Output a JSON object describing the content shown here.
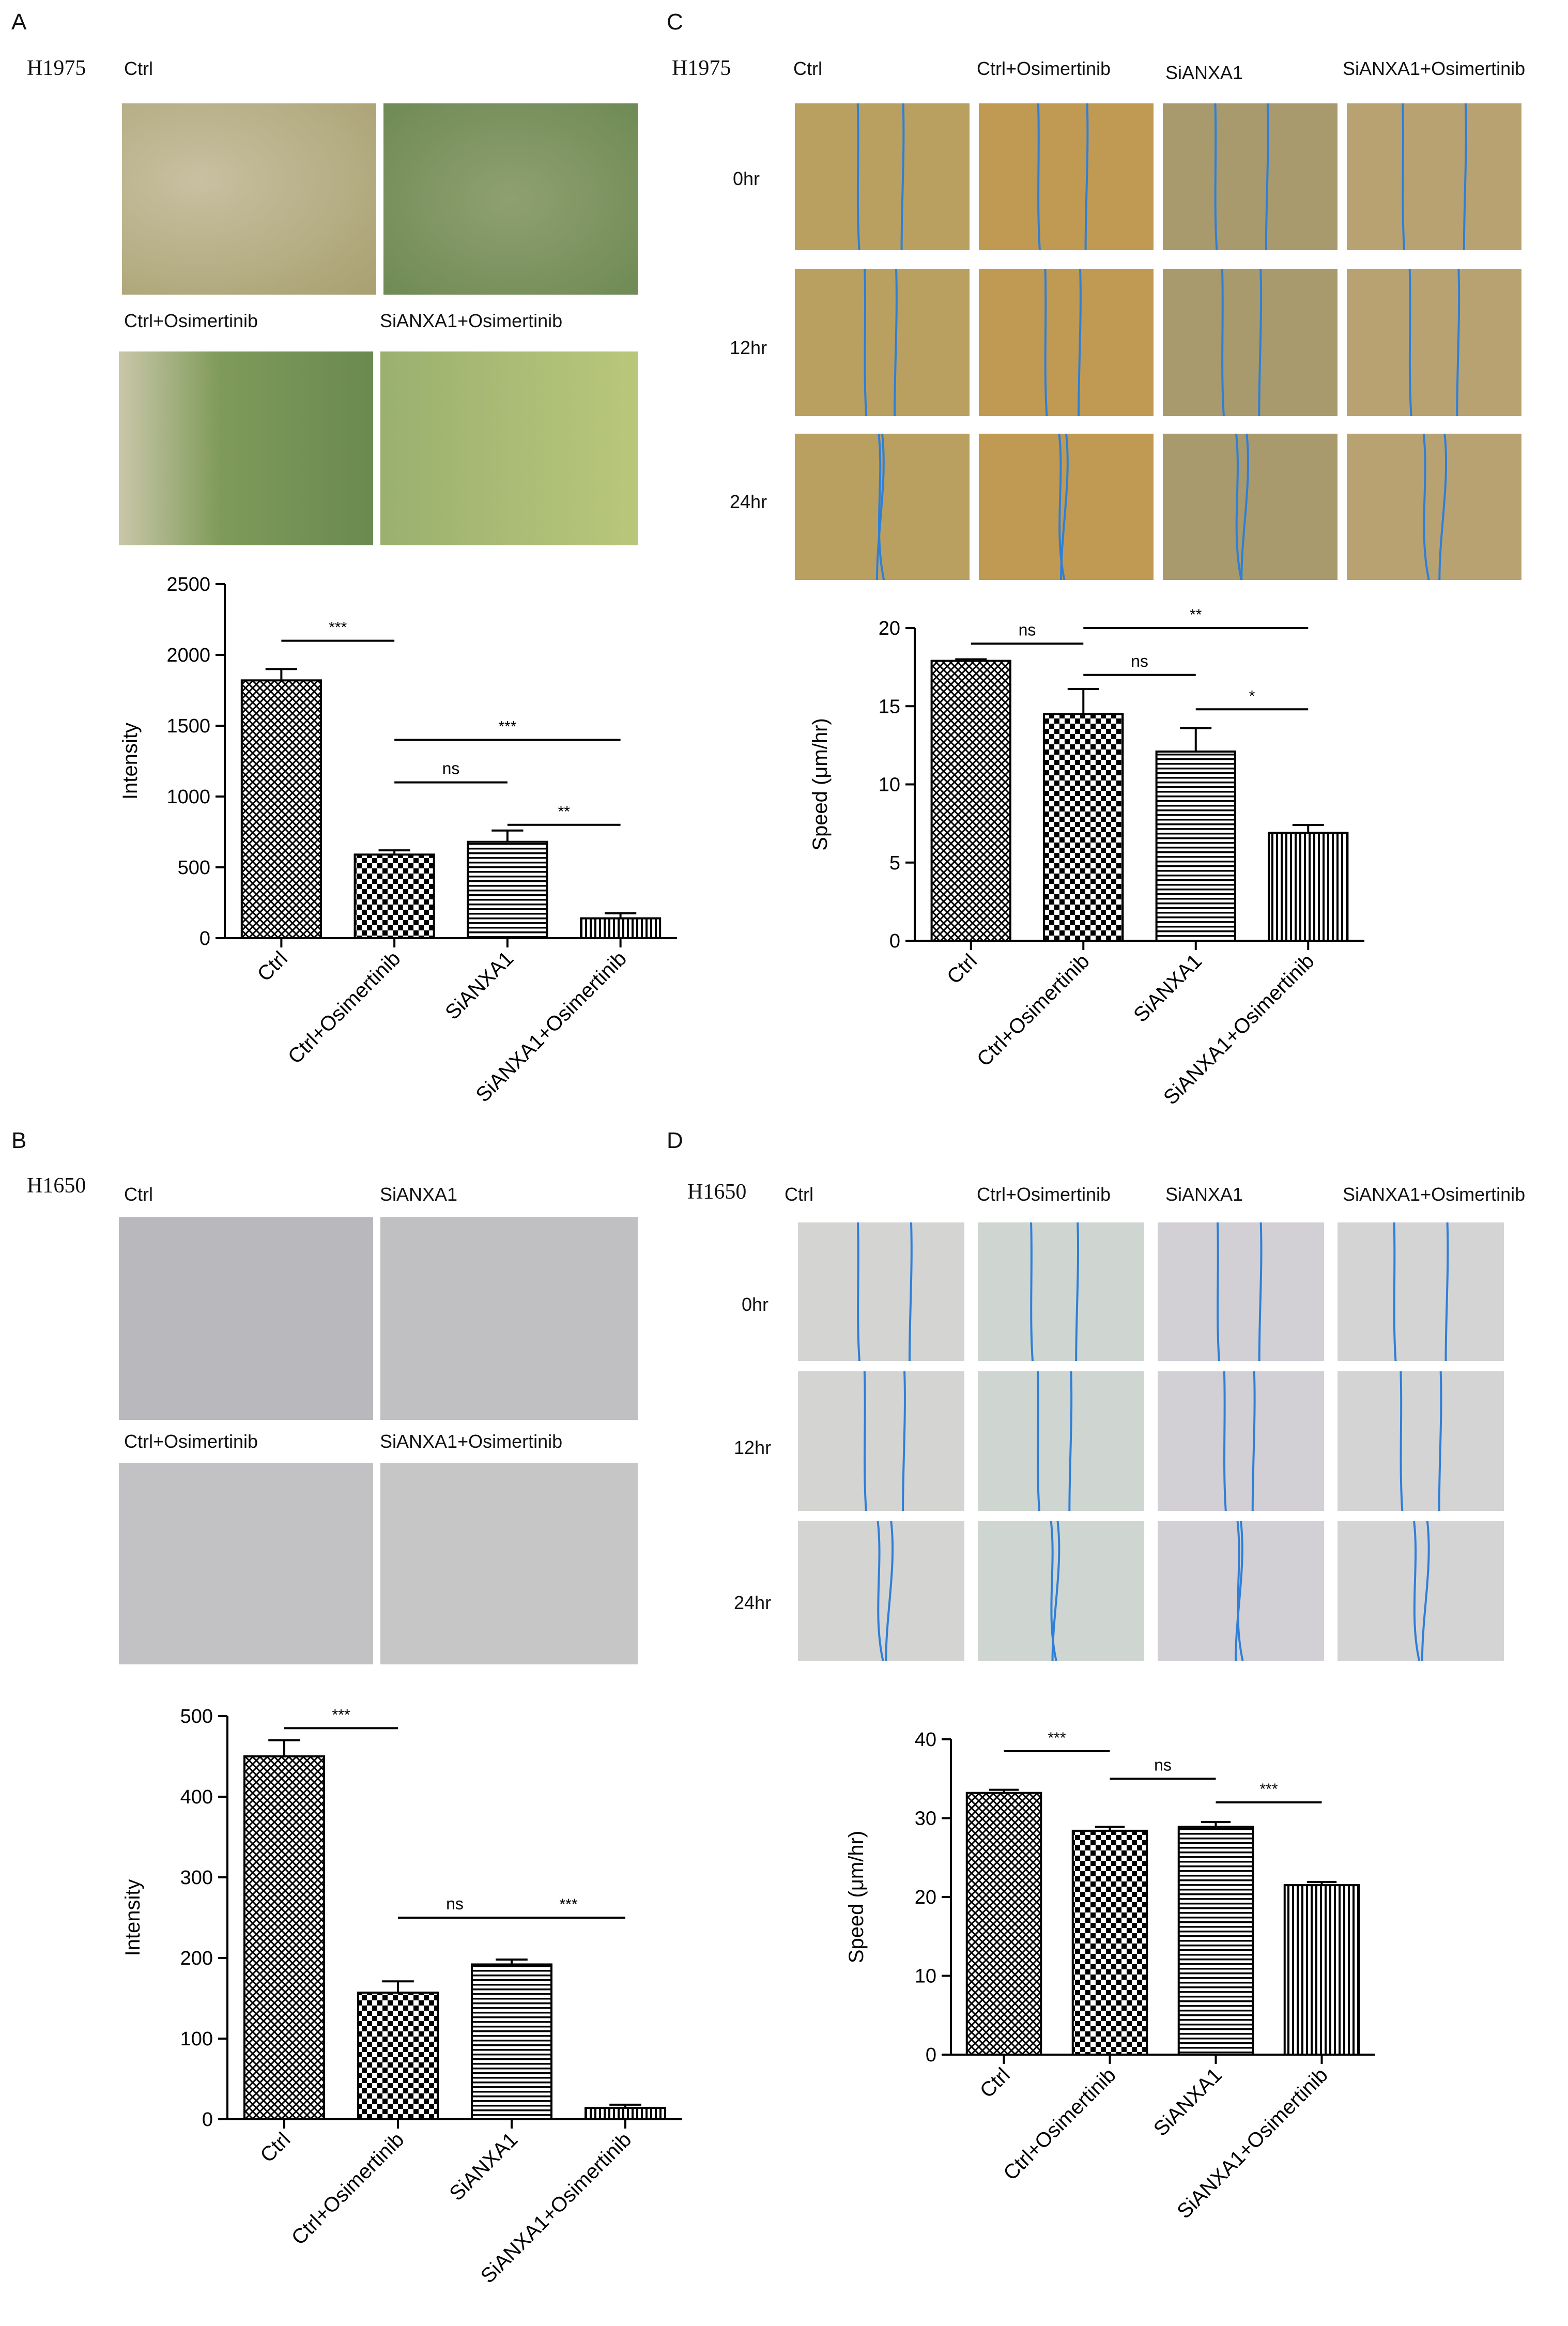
{
  "colors": {
    "ink": "#000000",
    "crystal_violet": "#6a3fb5",
    "wound_line": "#2f7fd8",
    "phase_bg_1975": "#b79a4a",
    "transwell_bg_1975": "#9aa86a",
    "phase_bg_1650": "#c9c9c9"
  },
  "panels": {
    "A": {
      "letter": "A",
      "cell_line": "H1975",
      "image_labels": [
        "Ctrl",
        "Ctrl+Osimertinib",
        "SiANXA1+Osimertinib"
      ]
    },
    "B": {
      "letter": "B",
      "cell_line": "H1650",
      "image_labels": [
        "Ctrl",
        "SiANXA1",
        "Ctrl+Osimertinib",
        "SiANXA1+Osimertinib"
      ]
    },
    "C": {
      "letter": "C",
      "cell_line": "H1975",
      "col_labels": [
        "Ctrl",
        "Ctrl+Osimertinib",
        "SiANXA1",
        "SiANXA1+Osimertinib"
      ],
      "row_labels": [
        "0hr",
        "12hr",
        "24hr"
      ]
    },
    "D": {
      "letter": "D",
      "cell_line": "H1650",
      "col_labels": [
        "Ctrl",
        "Ctrl+Osimertinib",
        "SiANXA1",
        "SiANXA1+Osimertinib"
      ],
      "row_labels": [
        "0hr",
        "12hr",
        "24hr"
      ]
    }
  },
  "chart_data": [
    {
      "id": "A",
      "type": "bar",
      "categories": [
        "Ctrl",
        "Ctrl+Osimertinib",
        "SiANXA1",
        "SiANXA1+Osimertinib"
      ],
      "values": [
        1820,
        590,
        680,
        140
      ],
      "errors": [
        80,
        30,
        80,
        35
      ],
      "patterns": [
        "checker-diag",
        "checker",
        "hlines",
        "vlines"
      ],
      "ylabel": "Intensity",
      "ylim": [
        0,
        2500
      ],
      "yticks": [
        0,
        500,
        1000,
        1500,
        2000,
        2500
      ],
      "significance": [
        {
          "label": "***",
          "from": 0,
          "to": 1,
          "y": 2100
        },
        {
          "label": "***",
          "from": 1,
          "to": 3,
          "y": 1400
        },
        {
          "label": "ns",
          "from": 1,
          "to": 2,
          "y": 1100
        },
        {
          "label": "**",
          "from": 2,
          "to": 3,
          "y": 800
        }
      ]
    },
    {
      "id": "B",
      "type": "bar",
      "categories": [
        "Ctrl",
        "Ctrl+Osimertinib",
        "SiANXA1",
        "SiANXA1+Osimertinib"
      ],
      "values": [
        450,
        157,
        192,
        14
      ],
      "errors": [
        20,
        14,
        6,
        4
      ],
      "patterns": [
        "checker-diag",
        "checker",
        "hlines",
        "vlines"
      ],
      "ylabel": "Intensity",
      "ylim": [
        0,
        500
      ],
      "yticks": [
        0,
        100,
        200,
        300,
        400,
        500
      ],
      "significance": [
        {
          "label": "***",
          "from": 0,
          "to": 1,
          "y": 485
        },
        {
          "label": "ns",
          "from": 1,
          "to": 2,
          "y": 250
        },
        {
          "label": "***",
          "from": 2,
          "to": 3,
          "y": 250
        }
      ]
    },
    {
      "id": "C",
      "type": "bar",
      "categories": [
        "Ctrl",
        "Ctrl+Osimertinib",
        "SiANXA1",
        "SiANXA1+Osimertinib"
      ],
      "values": [
        17.9,
        14.5,
        12.1,
        6.9
      ],
      "errors": [
        0.1,
        1.6,
        1.5,
        0.5
      ],
      "patterns": [
        "checker-diag",
        "checker",
        "hlines",
        "vlines"
      ],
      "ylabel": "Speed (μm/hr)",
      "ylim": [
        0,
        20
      ],
      "yticks": [
        0,
        5,
        10,
        15,
        20
      ],
      "significance": [
        {
          "label": "ns",
          "from": 0,
          "to": 1,
          "y": 19.0
        },
        {
          "label": "**",
          "from": 1,
          "to": 3,
          "y": 20.0
        },
        {
          "label": "ns",
          "from": 1,
          "to": 2,
          "y": 17.0
        },
        {
          "label": "*",
          "from": 2,
          "to": 3,
          "y": 14.8
        }
      ]
    },
    {
      "id": "D",
      "type": "bar",
      "categories": [
        "Ctrl",
        "Ctrl+Osimertinib",
        "SiANXA1",
        "SiANXA1+Osimertinib"
      ],
      "values": [
        33.2,
        28.4,
        28.9,
        21.5
      ],
      "errors": [
        0.4,
        0.5,
        0.6,
        0.4
      ],
      "patterns": [
        "checker-diag",
        "checker",
        "hlines",
        "vlines"
      ],
      "ylabel": "Speed (μm/hr)",
      "ylim": [
        0,
        40
      ],
      "yticks": [
        0,
        10,
        20,
        30,
        40
      ],
      "significance": [
        {
          "label": "***",
          "from": 0,
          "to": 1,
          "y": 38.5
        },
        {
          "label": "ns",
          "from": 1,
          "to": 2,
          "y": 35.0
        },
        {
          "label": "***",
          "from": 2,
          "to": 3,
          "y": 32.0
        }
      ]
    }
  ]
}
